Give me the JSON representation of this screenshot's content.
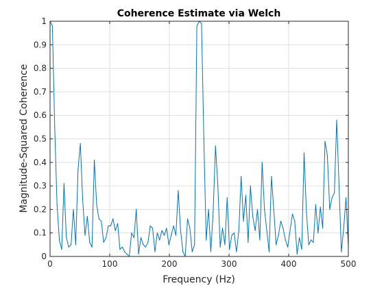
{
  "chart_data": {
    "type": "line",
    "title": "Coherence Estimate via Welch",
    "xlabel": "Frequency (Hz)",
    "ylabel": "Magnitude-Squared Coherence",
    "xlim": [
      0,
      500
    ],
    "ylim": [
      0,
      1
    ],
    "x_ticks": [
      0,
      100,
      200,
      300,
      400,
      500
    ],
    "y_ticks": [
      0,
      0.1,
      0.2,
      0.3,
      0.4,
      0.5,
      0.6,
      0.7,
      0.8,
      0.9,
      1
    ],
    "x_tick_labels": [
      "0",
      "100",
      "200",
      "300",
      "400",
      "500"
    ],
    "y_tick_labels": [
      "0",
      "0.1",
      "0.2",
      "0.3",
      "0.4",
      "0.5",
      "0.6",
      "0.7",
      "0.8",
      "0.9",
      "1"
    ],
    "grid": true,
    "series": [
      {
        "color": "#0072bd",
        "x": [
          0,
          3.9,
          7.8,
          11.7,
          15.6,
          19.5,
          23.4,
          27.3,
          31.3,
          35.2,
          39.1,
          43.0,
          46.9,
          50.8,
          54.7,
          58.6,
          62.5,
          66.4,
          70.3,
          74.2,
          78.1,
          82.0,
          85.9,
          89.8,
          93.8,
          97.7,
          101.6,
          105.5,
          109.4,
          113.3,
          117.2,
          121.1,
          125.0,
          128.9,
          132.8,
          136.7,
          140.6,
          144.5,
          148.4,
          152.3,
          156.3,
          160.2,
          164.1,
          168.0,
          171.9,
          175.8,
          179.7,
          183.6,
          187.5,
          191.4,
          195.3,
          199.2,
          203.1,
          207.0,
          210.9,
          214.8,
          218.8,
          222.7,
          226.6,
          230.5,
          234.4,
          238.3,
          242.2,
          246.1,
          250.0,
          253.9,
          257.8,
          261.7,
          265.6,
          269.5,
          273.4,
          277.3,
          281.3,
          285.2,
          289.1,
          293.0,
          296.9,
          300.8,
          304.7,
          308.6,
          312.5,
          316.4,
          320.3,
          324.2,
          328.1,
          332.0,
          335.9,
          339.8,
          343.8,
          347.7,
          351.6,
          355.5,
          359.4,
          363.3,
          367.2,
          371.1,
          375.0,
          378.9,
          382.8,
          386.7,
          390.6,
          394.5,
          398.4,
          402.3,
          406.3,
          410.2,
          414.1,
          418.0,
          421.9,
          425.8,
          429.7,
          433.6,
          437.5,
          441.4,
          445.3,
          449.2,
          453.1,
          457.0,
          460.9,
          464.8,
          468.8,
          472.7,
          476.6,
          480.5,
          484.4,
          488.3,
          492.2,
          496.1,
          500
        ],
        "y": [
          1.0,
          0.98,
          0.55,
          0.22,
          0.07,
          0.03,
          0.31,
          0.08,
          0.04,
          0.05,
          0.2,
          0.05,
          0.37,
          0.48,
          0.24,
          0.09,
          0.17,
          0.06,
          0.04,
          0.41,
          0.22,
          0.16,
          0.15,
          0.06,
          0.08,
          0.13,
          0.13,
          0.16,
          0.11,
          0.14,
          0.03,
          0.04,
          0.02,
          0.01,
          0.0,
          0.1,
          0.08,
          0.2,
          0.01,
          0.08,
          0.05,
          0.04,
          0.06,
          0.13,
          0.12,
          0.02,
          0.1,
          0.07,
          0.11,
          0.09,
          0.12,
          0.05,
          0.09,
          0.13,
          0.09,
          0.28,
          0.11,
          0.02,
          0.0,
          0.16,
          0.12,
          0.02,
          0.05,
          0.98,
          1.0,
          0.99,
          0.5,
          0.07,
          0.2,
          0.02,
          0.19,
          0.47,
          0.3,
          0.04,
          0.12,
          0.05,
          0.25,
          0.03,
          0.09,
          0.1,
          0.02,
          0.11,
          0.34,
          0.15,
          0.26,
          0.06,
          0.3,
          0.17,
          0.11,
          0.2,
          0.07,
          0.4,
          0.2,
          0.11,
          0.02,
          0.34,
          0.2,
          0.05,
          0.09,
          0.15,
          0.12,
          0.07,
          0.04,
          0.11,
          0.18,
          0.15,
          0.01,
          0.08,
          0.03,
          0.44,
          0.19,
          0.05,
          0.07,
          0.06,
          0.22,
          0.1,
          0.21,
          0.12,
          0.49,
          0.43,
          0.2,
          0.25,
          0.27,
          0.58,
          0.3,
          0.02,
          0.12,
          0.25,
          0.04
        ]
      }
    ]
  }
}
